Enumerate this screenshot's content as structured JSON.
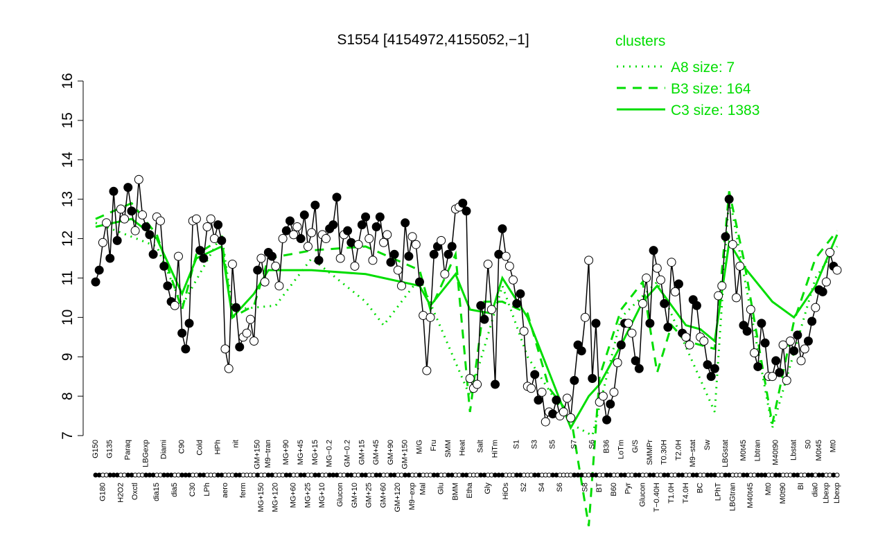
{
  "chart_data": {
    "type": "line",
    "title": "S1554 [4154972,4155052,−1]",
    "categories": [
      "G150",
      null,
      "G180",
      null,
      "G135",
      null,
      null,
      "H2O2",
      null,
      "Paraq",
      null,
      "Oxctl",
      null,
      null,
      "LBGexp",
      null,
      null,
      "dia15",
      null,
      "Diami",
      null,
      null,
      "dia5",
      null,
      "C90",
      null,
      null,
      "C30",
      null,
      "Cold",
      null,
      "LPh",
      null,
      null,
      "HPh",
      null,
      "aero",
      null,
      null,
      "nit",
      null,
      "ferm",
      null,
      null,
      null,
      "GM+150",
      "MG+150",
      null,
      "M9−tran",
      null,
      "MG+120",
      null,
      null,
      "MG+90",
      null,
      "MG+60",
      null,
      "MG+45",
      null,
      "MG+25",
      null,
      "MG+15",
      null,
      "MG+10",
      null,
      "MG−0.2",
      null,
      null,
      "Glucon",
      null,
      "GM−0.2",
      null,
      "GM+10",
      null,
      "GM+15",
      null,
      "GM+25",
      null,
      "GM+45",
      null,
      "GM+60",
      null,
      "GM+90",
      null,
      "GM+120",
      null,
      "GM+150",
      null,
      "M9−exp",
      null,
      "M/G",
      "Mal",
      null,
      null,
      "Fru",
      null,
      "Glu",
      null,
      "SMM",
      null,
      "BMM",
      null,
      "Heat",
      null,
      "Etha",
      null,
      null,
      "Salt",
      null,
      "Gly",
      null,
      "HiTm",
      null,
      null,
      "HiOs",
      null,
      null,
      "S1",
      null,
      "S2",
      null,
      null,
      "S3",
      null,
      "S4",
      null,
      null,
      "S5",
      null,
      "S6",
      null,
      null,
      null,
      "S7",
      null,
      null,
      "S8",
      null,
      "S6",
      null,
      "BT",
      null,
      "B36",
      null,
      "B60",
      null,
      "LoTm",
      null,
      "Pyr",
      null,
      "G/S",
      null,
      "Glucon",
      null,
      "SMMPr",
      null,
      "T−0.40H",
      null,
      "T0.30H",
      null,
      "T1.0H",
      null,
      "T2.0H",
      null,
      "T4.0H",
      null,
      "M9−stat",
      null,
      "BC",
      null,
      "Sw",
      null,
      null,
      "LPhT",
      null,
      "LBGstat",
      null,
      "LBGtran",
      null,
      null,
      "M0t45",
      null,
      "M40t45",
      null,
      "Lbtran",
      null,
      null,
      "Mt0",
      null,
      "M40t90",
      null,
      "M0t90",
      null,
      null,
      "Lbstat",
      null,
      "BI",
      null,
      "S0",
      null,
      "dia0",
      "M0t45",
      null,
      "Lbexp",
      null,
      "Mt0",
      "Lbexp"
    ],
    "values": [
      10.9,
      11.2,
      11.9,
      12.4,
      11.5,
      13.2,
      11.95,
      12.75,
      12.5,
      13.3,
      12.7,
      12.2,
      13.5,
      12.6,
      12.3,
      12.1,
      11.6,
      12.55,
      12.45,
      11.3,
      10.8,
      10.4,
      10.3,
      11.55,
      9.6,
      9.2,
      9.85,
      12.45,
      12.5,
      11.7,
      11.5,
      12.3,
      12.5,
      12.0,
      12.35,
      11.95,
      9.2,
      8.7,
      11.35,
      10.25,
      9.25,
      9.5,
      9.6,
      9.95,
      9.4,
      11.2,
      11.5,
      10.9,
      11.65,
      11.55,
      11.3,
      10.8,
      12.0,
      12.2,
      12.45,
      12.1,
      12.3,
      12.0,
      12.6,
      11.8,
      12.15,
      12.85,
      11.45,
      12.1,
      12.0,
      12.25,
      12.35,
      13.05,
      11.5,
      12.1,
      12.2,
      11.9,
      11.3,
      11.85,
      12.35,
      12.55,
      12.0,
      11.45,
      12.3,
      12.55,
      11.9,
      12.1,
      11.4,
      11.6,
      11.2,
      10.8,
      12.4,
      11.55,
      12.05,
      11.85,
      10.9,
      10.05,
      8.65,
      10.0,
      11.6,
      11.8,
      11.95,
      11.1,
      11.6,
      11.8,
      12.75,
      12.8,
      12.9,
      12.7,
      8.45,
      8.2,
      8.3,
      10.3,
      9.95,
      11.35,
      10.2,
      8.3,
      11.6,
      12.25,
      11.55,
      11.3,
      10.95,
      10.35,
      10.6,
      9.65,
      8.25,
      8.2,
      8.55,
      7.9,
      8.1,
      7.35,
      7.6,
      7.55,
      7.9,
      7.5,
      7.6,
      7.95,
      7.45,
      8.4,
      9.3,
      9.15,
      10.0,
      11.45,
      8.45,
      9.85,
      7.85,
      8.0,
      7.4,
      7.8,
      8.1,
      8.85,
      9.3,
      9.85,
      9.85,
      9.6,
      8.9,
      8.7,
      10.35,
      11.0,
      9.85,
      11.7,
      11.25,
      10.95,
      10.35,
      9.75,
      11.4,
      10.65,
      10.85,
      9.6,
      9.5,
      9.3,
      10.45,
      10.3,
      9.5,
      9.4,
      8.8,
      8.5,
      8.7,
      10.55,
      10.8,
      12.05,
      13.0,
      11.85,
      10.5,
      11.3,
      9.8,
      9.65,
      10.2,
      9.1,
      8.75,
      9.85,
      9.35,
      8.5,
      8.5,
      8.9,
      8.6,
      9.3,
      8.4,
      9.4,
      9.15,
      9.55,
      8.9,
      9.2,
      9.4,
      9.9,
      10.25,
      10.7,
      10.65,
      10.9,
      11.65,
      11.3,
      11.2
    ],
    "line_color": "#000000",
    "marker_colors": [
      "#000000",
      "#ffffff"
    ],
    "series": [
      {
        "name": "A8 size: 7",
        "color": "#00dd00",
        "style": "dotted",
        "x": [
          0,
          17,
          24,
          35,
          38,
          50,
          60,
          75,
          80,
          90,
          104,
          113,
          120,
          132,
          138,
          146,
          156,
          172,
          176,
          188,
          200,
          206
        ],
        "values": [
          12.4,
          11.8,
          10.3,
          12.1,
          10.2,
          10.3,
          11.5,
          10.4,
          9.8,
          11.0,
          8.0,
          10.8,
          9.0,
          7.3,
          7.0,
          10.0,
          10.9,
          7.6,
          13.1,
          7.2,
          11.0,
          11.8
        ]
      },
      {
        "name": "B3 size: 164",
        "color": "#00dd00",
        "style": "dashed",
        "x": [
          0,
          10,
          17,
          24,
          28,
          35,
          38,
          44,
          48,
          60,
          75,
          90,
          93,
          100,
          104,
          108,
          113,
          120,
          126,
          132,
          137,
          140,
          146,
          152,
          156,
          160,
          164,
          172,
          176,
          180,
          188,
          194,
          200,
          206
        ],
        "values": [
          12.5,
          12.9,
          12.1,
          10.2,
          11.6,
          12.0,
          10.0,
          10.3,
          11.5,
          11.7,
          11.8,
          11.2,
          10.2,
          11.6,
          7.6,
          10.4,
          10.4,
          10.1,
          8.2,
          7.5,
          4.7,
          8.5,
          10.2,
          10.9,
          8.6,
          9.8,
          9.4,
          9.2,
          13.2,
          11.5,
          7.3,
          9.9,
          11.5,
          12.2
        ]
      },
      {
        "name": "C3 size: 1383",
        "color": "#00dd00",
        "style": "solid",
        "x": [
          0,
          10,
          17,
          24,
          28,
          35,
          38,
          44,
          48,
          60,
          75,
          90,
          93,
          100,
          104,
          110,
          113,
          120,
          126,
          132,
          137,
          140,
          146,
          152,
          156,
          164,
          168,
          172,
          176,
          180,
          188,
          194,
          200,
          206
        ],
        "values": [
          12.3,
          12.5,
          12.0,
          10.6,
          11.5,
          11.8,
          10.0,
          10.6,
          11.2,
          11.2,
          11.1,
          10.8,
          10.3,
          11.1,
          10.2,
          10.1,
          11.0,
          10.0,
          8.6,
          7.2,
          8.0,
          8.3,
          9.3,
          10.4,
          10.8,
          9.8,
          9.7,
          9.4,
          11.9,
          11.3,
          10.4,
          10.0,
          10.8,
          12.1
        ]
      }
    ],
    "legend_title": "clusters",
    "legend": "top-right",
    "ylim": [
      7,
      16
    ],
    "yticks": [
      7,
      8,
      9,
      10,
      11,
      12,
      13,
      14,
      15,
      16
    ]
  }
}
